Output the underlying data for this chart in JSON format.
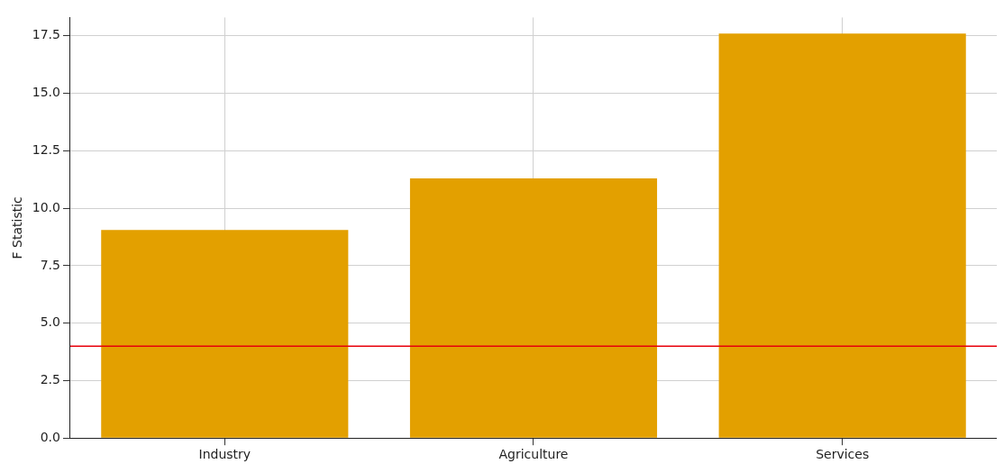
{
  "chart_data": {
    "type": "bar",
    "ylabel": "F Statistic",
    "categories": [
      "Industry",
      "Agriculture",
      "Services"
    ],
    "values": [
      9.05,
      11.3,
      17.6
    ],
    "color": "#e3a000",
    "ylim": [
      0,
      18.3
    ],
    "yticks": [
      {
        "value": 0,
        "label": "0.0"
      },
      {
        "value": 2.5,
        "label": "2.5"
      },
      {
        "value": 5,
        "label": "5.0"
      },
      {
        "value": 7.5,
        "label": "7.5"
      },
      {
        "value": 10,
        "label": "10.0"
      },
      {
        "value": 12.5,
        "label": "12.5"
      },
      {
        "value": 15,
        "label": "15.0"
      },
      {
        "value": 17.5,
        "label": "17.5"
      }
    ],
    "grid": true,
    "ref_lines": [
      {
        "axis": "y",
        "value": 4.0,
        "color": "#e8000b"
      }
    ]
  }
}
